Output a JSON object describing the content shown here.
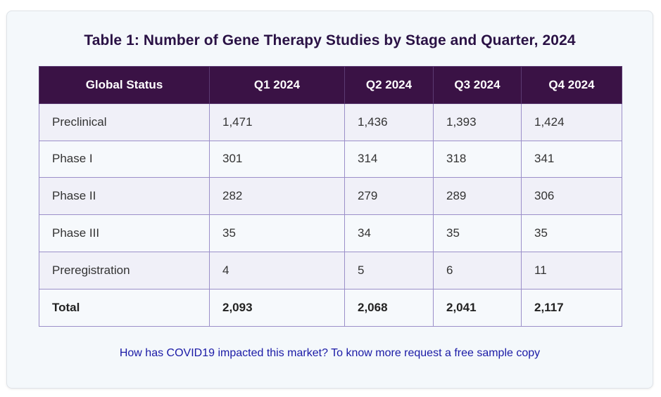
{
  "title": "Table 1: Number of Gene Therapy Studies by Stage and Quarter, 2024",
  "columns": [
    "Global Status",
    "Q1 2024",
    "Q2 2024",
    "Q3 2024",
    "Q4 2024"
  ],
  "rows": [
    {
      "label": "Preclinical",
      "values": [
        "1,471",
        "1,436",
        "1,393",
        "1,424"
      ]
    },
    {
      "label": "Phase I",
      "values": [
        "301",
        "314",
        "318",
        "341"
      ]
    },
    {
      "label": "Phase II",
      "values": [
        "282",
        "279",
        "289",
        "306"
      ]
    },
    {
      "label": "Phase III",
      "values": [
        "35",
        "34",
        "35",
        "35"
      ]
    },
    {
      "label": "Preregistration",
      "values": [
        "4",
        "5",
        "6",
        "11"
      ]
    },
    {
      "label": "Total",
      "values": [
        "2,093",
        "2,068",
        "2,041",
        "2,117"
      ]
    }
  ],
  "footer_link": "How has COVID19 impacted this market? To know more request a free sample copy",
  "colors": {
    "header_bg": "#3a1245",
    "title": "#2a1245",
    "border": "#9b8fc9",
    "link": "#1a1aa6"
  }
}
